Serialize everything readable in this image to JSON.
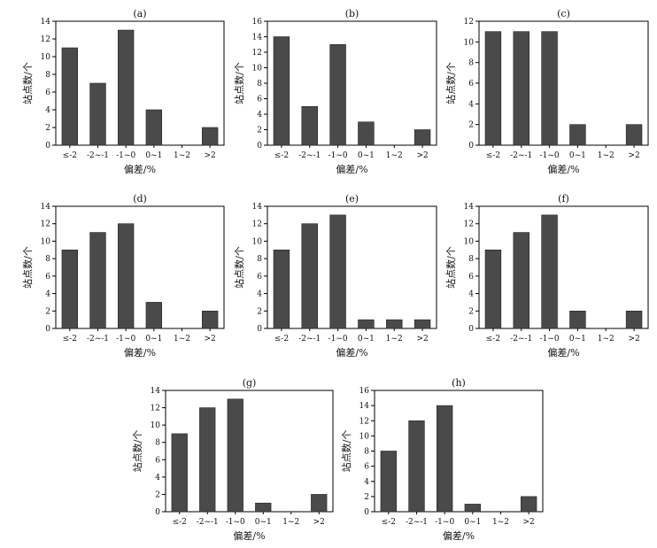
{
  "chart_data": [
    {
      "type": "bar",
      "title": "(a)",
      "xlabel": "偏差/%",
      "ylabel": "站点数/个",
      "categories": [
        "≤-2",
        "-2~-1",
        "-1~0",
        "0~1",
        "1~2",
        ">2"
      ],
      "values": [
        11,
        7,
        13,
        4,
        0,
        2
      ],
      "ylim": [
        0,
        14
      ],
      "yticks": [
        0,
        2,
        4,
        6,
        8,
        10,
        12,
        14
      ]
    },
    {
      "type": "bar",
      "title": "(b)",
      "xlabel": "偏差/%",
      "ylabel": "站点数/个",
      "categories": [
        "≤-2",
        "-2~-1",
        "-1~0",
        "0~1",
        "1~2",
        ">2"
      ],
      "values": [
        14,
        5,
        13,
        3,
        0,
        2
      ],
      "ylim": [
        0,
        16
      ],
      "yticks": [
        0,
        2,
        4,
        6,
        8,
        10,
        12,
        14,
        16
      ]
    },
    {
      "type": "bar",
      "title": "(c)",
      "xlabel": "偏差/%",
      "ylabel": "站点数/个",
      "categories": [
        "≤-2",
        "-2~-1",
        "-1~0",
        "0~1",
        "1~2",
        ">2"
      ],
      "values": [
        11,
        11,
        11,
        2,
        0,
        2
      ],
      "ylim": [
        0,
        12
      ],
      "yticks": [
        0,
        2,
        4,
        6,
        8,
        10,
        12
      ]
    },
    {
      "type": "bar",
      "title": "(d)",
      "xlabel": "偏差/%",
      "ylabel": "站点数/个",
      "categories": [
        "≤-2",
        "-2~-1",
        "-1~0",
        "0~1",
        "1~2",
        ">2"
      ],
      "values": [
        9,
        11,
        12,
        3,
        0,
        2
      ],
      "ylim": [
        0,
        14
      ],
      "yticks": [
        0,
        2,
        4,
        6,
        8,
        10,
        12,
        14
      ]
    },
    {
      "type": "bar",
      "title": "(e)",
      "xlabel": "偏差/%",
      "ylabel": "站点数/个",
      "categories": [
        "≤-2",
        "-2~-1",
        "-1~0",
        "0~1",
        "1~2",
        ">2"
      ],
      "values": [
        9,
        12,
        13,
        1,
        1,
        1
      ],
      "ylim": [
        0,
        14
      ],
      "yticks": [
        0,
        2,
        4,
        6,
        8,
        10,
        12,
        14
      ]
    },
    {
      "type": "bar",
      "title": "(f)",
      "xlabel": "偏差/%",
      "ylabel": "站点数/个",
      "categories": [
        "≤-2",
        "-2~-1",
        "-1~0",
        "0~1",
        "1~2",
        ">2"
      ],
      "values": [
        9,
        11,
        13,
        2,
        0,
        2
      ],
      "ylim": [
        0,
        14
      ],
      "yticks": [
        0,
        2,
        4,
        6,
        8,
        10,
        12,
        14
      ]
    },
    {
      "type": "bar",
      "title": "(g)",
      "xlabel": "偏差/%",
      "ylabel": "站点数/个",
      "categories": [
        "≤-2",
        "-2~-1",
        "-1~0",
        "0~1",
        "1~2",
        ">2"
      ],
      "values": [
        9,
        12,
        13,
        1,
        0,
        2
      ],
      "ylim": [
        0,
        14
      ],
      "yticks": [
        0,
        2,
        4,
        6,
        8,
        10,
        12,
        14
      ]
    },
    {
      "type": "bar",
      "title": "(h)",
      "xlabel": "偏差/%",
      "ylabel": "站点数/个",
      "categories": [
        "≤-2",
        "-2~-1",
        "-1~0",
        "0~1",
        "1~2",
        ">2"
      ],
      "values": [
        8,
        12,
        14,
        1,
        0,
        2
      ],
      "ylim": [
        0,
        16
      ],
      "yticks": [
        0,
        2,
        4,
        6,
        8,
        10,
        12,
        14,
        16
      ]
    }
  ],
  "style": {
    "bar_color": "#4a4a4a",
    "axis_color": "#000000"
  }
}
